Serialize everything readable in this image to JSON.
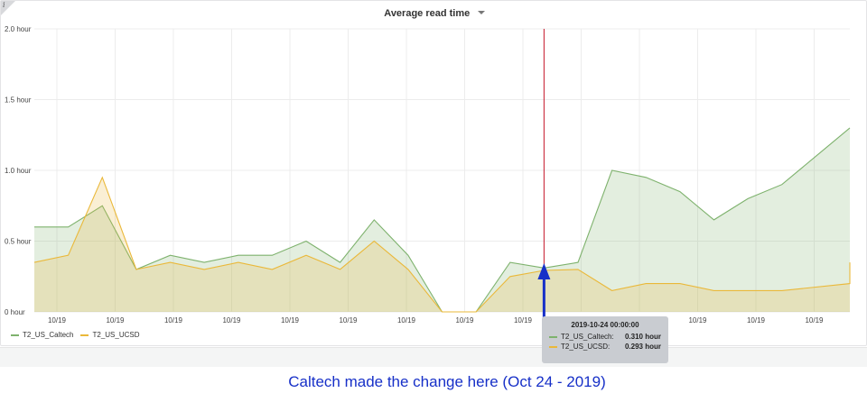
{
  "panel": {
    "title": "Average read time",
    "info_icon": "info-icon",
    "menu_icon": "caret-down-icon"
  },
  "chart_data": {
    "type": "area",
    "title": "Average read time",
    "xlabel": "",
    "ylabel": "",
    "ylim": [
      0,
      2.0
    ],
    "y_unit": "hour",
    "yticks": [
      "0 hour",
      "0.5 hour",
      "1.0 hour",
      "1.5 hour",
      "2.0 hour"
    ],
    "x_tick_labels": [
      "10/19",
      "10/19",
      "10/19",
      "10/19",
      "10/19",
      "10/19",
      "10/19",
      "10/19",
      "10/19",
      "10/19",
      "10/19",
      "10/19",
      "10/19",
      "10/19"
    ],
    "x_period": [
      "2019-10-09",
      "2019-11-02"
    ],
    "legend_position": "bottom-left",
    "grid": true,
    "cursor_marker": "2019-10-24 00:00:00",
    "series": [
      {
        "name": "T2_US_Caltech",
        "color": "#7eb26d",
        "x": [
          "2019-10-09",
          "2019-10-10",
          "2019-10-11",
          "2019-10-12",
          "2019-10-13",
          "2019-10-14",
          "2019-10-15",
          "2019-10-16",
          "2019-10-17",
          "2019-10-18",
          "2019-10-19",
          "2019-10-20",
          "2019-10-21",
          "2019-10-22",
          "2019-10-23",
          "2019-10-24",
          "2019-10-25",
          "2019-10-26",
          "2019-10-27",
          "2019-10-28",
          "2019-10-29",
          "2019-10-30",
          "2019-10-31",
          "2019-11-01",
          "2019-11-02"
        ],
        "values": [
          0.6,
          0.6,
          0.75,
          0.3,
          0.4,
          0.35,
          0.4,
          0.4,
          0.5,
          0.35,
          0.65,
          0.4,
          0.0,
          0.0,
          0.35,
          0.31,
          0.35,
          1.0,
          0.95,
          0.85,
          0.65,
          0.8,
          0.9,
          1.1,
          1.3
        ]
      },
      {
        "name": "T2_US_UCSD",
        "color": "#eab839",
        "x": [
          "2019-10-09",
          "2019-10-10",
          "2019-10-11",
          "2019-10-12",
          "2019-10-13",
          "2019-10-14",
          "2019-10-15",
          "2019-10-16",
          "2019-10-17",
          "2019-10-18",
          "2019-10-19",
          "2019-10-20",
          "2019-10-21",
          "2019-10-22",
          "2019-10-23",
          "2019-10-24",
          "2019-10-25",
          "2019-10-26",
          "2019-10-27",
          "2019-10-28",
          "2019-10-29",
          "2019-10-30",
          "2019-10-31",
          "2019-11-02",
          "2019-11-02"
        ],
        "values": [
          0.35,
          0.4,
          0.95,
          0.3,
          0.35,
          0.3,
          0.35,
          0.3,
          0.4,
          0.3,
          0.5,
          0.3,
          0.0,
          0.0,
          0.25,
          0.293,
          0.3,
          0.15,
          0.2,
          0.2,
          0.15,
          0.15,
          0.15,
          0.2,
          0.35
        ]
      }
    ]
  },
  "tooltip": {
    "time": "2019-10-24 00:00:00",
    "rows": [
      {
        "name": "T2_US_Caltech:",
        "value": "0.310 hour",
        "color": "#7eb26d"
      },
      {
        "name": "T2_US_UCSD:",
        "value": "0.293 hour",
        "color": "#eab839"
      }
    ]
  },
  "annotation": {
    "text": "Caltech made the change here (Oct 24 - 2019)",
    "color": "#1730c8"
  },
  "colors": {
    "cursor_line": "#c4162a",
    "grid": "#ececec"
  }
}
